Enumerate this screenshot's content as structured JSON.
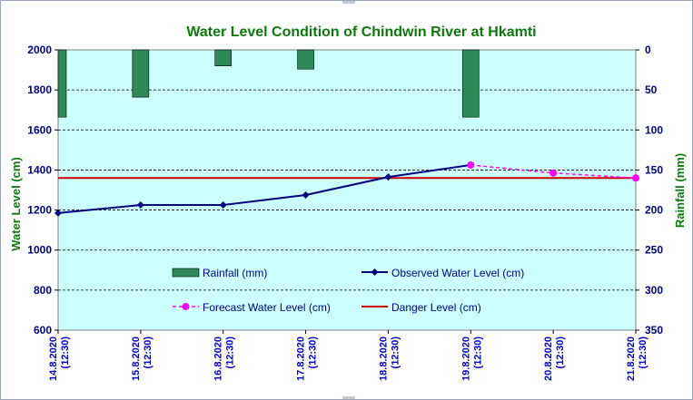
{
  "chart_data": {
    "type": "line",
    "title": "Water Level Condition of Chindwin River at Hkamti",
    "ylabel": "Water Level (cm)",
    "y2label": "Rainfall (mm)",
    "ylim": [
      600,
      2000
    ],
    "y_ticks": [
      "600",
      "800",
      "1000",
      "1200",
      "1400",
      "1600",
      "1800",
      "2000"
    ],
    "y2lim": [
      0,
      350
    ],
    "y2_ticks": [
      "0",
      "50",
      "100",
      "150",
      "200",
      "250",
      "300",
      "350"
    ],
    "y2_inverted": true,
    "grid": "horizontal dashed",
    "categories": [
      [
        "14.8.2020",
        "(12:30)"
      ],
      [
        "15.8.2020",
        "(12:30)"
      ],
      [
        "16.8.2020",
        "(12:30)"
      ],
      [
        "17.8.2020",
        "(12:30)"
      ],
      [
        "18.8.2020",
        "(12:30)"
      ],
      [
        "19.8.2020",
        "(12:30)"
      ],
      [
        "20.8.2020",
        "(12:30)"
      ],
      [
        "21.8.2020",
        "(12:30)"
      ]
    ],
    "series": [
      {
        "name": "Rainfall (mm)",
        "type": "bar",
        "axis": "right",
        "color": "#2e8b57",
        "values": [
          84,
          59,
          20,
          24,
          null,
          84,
          null,
          null
        ]
      },
      {
        "name": "Observed Water Level (cm)",
        "type": "line",
        "axis": "left",
        "color": "#000080",
        "marker": "diamond",
        "values": [
          1185,
          1225,
          1225,
          1275,
          1365,
          1425,
          null,
          null
        ]
      },
      {
        "name": "Forecast Water Level (cm)",
        "type": "line",
        "axis": "left",
        "color": "#ff00ff",
        "marker": "circle",
        "dashed": true,
        "values": [
          null,
          null,
          null,
          null,
          null,
          1425,
          1385,
          1360
        ]
      },
      {
        "name": "Danger Level (cm)",
        "type": "hline",
        "axis": "left",
        "color": "#cc0000",
        "values": [
          1360,
          1360,
          1360,
          1360,
          1360,
          1360,
          1360,
          1360
        ]
      }
    ],
    "legend": "inside-bottom"
  },
  "colors": {
    "plot_background": "#ccffff",
    "title": "#0a7a0a",
    "tick_labels": "#00008b"
  }
}
